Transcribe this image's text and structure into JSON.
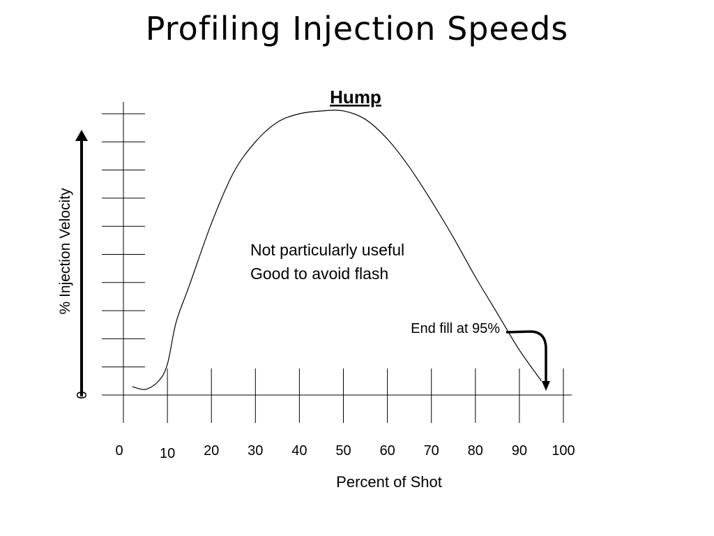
{
  "slide": {
    "title": "Profiling Injection Speeds"
  },
  "chart_data": {
    "type": "line",
    "title": "Hump",
    "xlabel": "Percent of Shot",
    "ylabel": "% Injection Velocity",
    "xlim": [
      0,
      100
    ],
    "ylim": [
      0,
      10
    ],
    "x_ticks": [
      0,
      10,
      20,
      30,
      40,
      50,
      60,
      70,
      80,
      90,
      100
    ],
    "x_tick_labels": [
      "0",
      "10",
      "20",
      "30",
      "40",
      "50",
      "60",
      "70",
      "80",
      "90",
      "100"
    ],
    "y_ticks": [
      0,
      1,
      2,
      3,
      4,
      5,
      6,
      7,
      8,
      9,
      10
    ],
    "y_origin_label": "0",
    "grid": false,
    "series": [
      {
        "x": [
          2,
          5,
          8,
          10,
          12,
          15,
          20,
          25,
          30,
          35,
          40,
          45,
          50,
          55,
          60,
          65,
          70,
          75,
          80,
          85,
          90,
          95
        ],
        "y": [
          0.3,
          0.2,
          0.5,
          1.1,
          2.6,
          3.9,
          6.1,
          7.9,
          9.0,
          9.7,
          10.0,
          10.1,
          10.1,
          9.8,
          9.1,
          8.1,
          6.9,
          5.6,
          4.2,
          2.9,
          1.6,
          0.5
        ]
      }
    ],
    "annotations": [
      {
        "text": "Not particularly useful"
      },
      {
        "text": "Good to avoid flash"
      },
      {
        "text": "End fill at 95%"
      }
    ]
  }
}
